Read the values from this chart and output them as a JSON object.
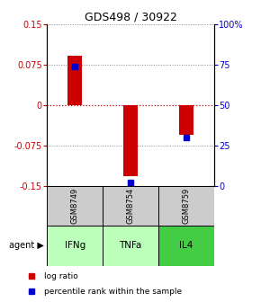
{
  "title": "GDS498 / 30922",
  "samples": [
    "GSM8749",
    "GSM8754",
    "GSM8759"
  ],
  "agents": [
    "IFNg",
    "TNFa",
    "IL4"
  ],
  "log_ratios": [
    0.092,
    -0.132,
    -0.055
  ],
  "percentile_ranks": [
    0.74,
    0.02,
    0.3
  ],
  "ylim_left": [
    -0.15,
    0.15
  ],
  "yticks_left": [
    -0.15,
    -0.075,
    0,
    0.075,
    0.15
  ],
  "ytick_labels_left": [
    "-0.15",
    "-0.075",
    "0",
    "0.075",
    "0.15"
  ],
  "yticks_right": [
    0,
    0.25,
    0.5,
    0.75,
    1.0
  ],
  "ytick_labels_right": [
    "0",
    "25",
    "50",
    "75",
    "100%"
  ],
  "bar_color": "#cc0000",
  "dot_color": "#0000cc",
  "zero_line_color": "#cc0000",
  "agent_colors": [
    "#bbffbb",
    "#bbffbb",
    "#44cc44"
  ],
  "sample_bg": "#cccccc",
  "title_fontsize": 9,
  "tick_fontsize": 7,
  "bar_width": 0.25
}
